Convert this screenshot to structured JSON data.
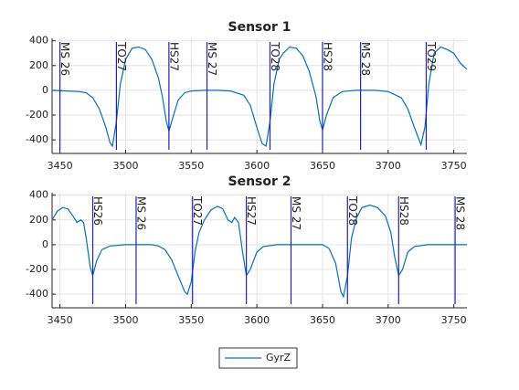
{
  "chart_data": [
    {
      "type": "line",
      "title": "Sensor 1",
      "x": [
        3444,
        3455,
        3465,
        3470,
        3475,
        3480,
        3485,
        3488,
        3490,
        3493,
        3496,
        3500,
        3505,
        3510,
        3515,
        3520,
        3525,
        3528,
        3531,
        3533,
        3536,
        3540,
        3545,
        3550,
        3560,
        3570,
        3580,
        3590,
        3595,
        3600,
        3604,
        3607,
        3610,
        3613,
        3617,
        3620,
        3625,
        3630,
        3635,
        3640,
        3645,
        3648,
        3650,
        3653,
        3658,
        3665,
        3675,
        3690,
        3700,
        3710,
        3715,
        3720,
        3725,
        3728,
        3731,
        3735,
        3740,
        3745,
        3750,
        3755,
        3760
      ],
      "series": [
        {
          "name": "GyrZ",
          "color": "#0072bd",
          "values": [
            0,
            -5,
            -10,
            -20,
            -60,
            -150,
            -300,
            -420,
            -450,
            -250,
            50,
            250,
            340,
            350,
            330,
            250,
            100,
            -50,
            -250,
            -330,
            -220,
            -80,
            -20,
            -5,
            0,
            0,
            -5,
            -40,
            -120,
            -300,
            -430,
            -450,
            -250,
            50,
            250,
            300,
            350,
            340,
            280,
            150,
            -50,
            -250,
            -320,
            -200,
            -60,
            -10,
            0,
            0,
            -10,
            -60,
            -150,
            -300,
            -440,
            -300,
            50,
            300,
            350,
            330,
            300,
            220,
            170
          ]
        }
      ],
      "events": [
        {
          "x": 3450,
          "label": "MS 26"
        },
        {
          "x": 3493,
          "label": "TO27"
        },
        {
          "x": 3533,
          "label": "HS27"
        },
        {
          "x": 3562,
          "label": "MS 27"
        },
        {
          "x": 3610,
          "label": "TO28"
        },
        {
          "x": 3650,
          "label": "HS28"
        },
        {
          "x": 3679,
          "label": "MS 28"
        },
        {
          "x": 3729,
          "label": "TO29"
        }
      ],
      "event_color": "#1f1fc8",
      "xlim": [
        3444,
        3760
      ],
      "ylim": [
        -510,
        420
      ],
      "xticks": [
        3450,
        3500,
        3550,
        3600,
        3650,
        3700,
        3750
      ],
      "yticks": [
        -400,
        -200,
        0,
        200,
        400
      ],
      "grid": true,
      "legend": "bottom"
    },
    {
      "type": "line",
      "title": "Sensor 2",
      "x": [
        3444,
        3448,
        3452,
        3456,
        3460,
        3463,
        3466,
        3468,
        3470,
        3473,
        3475,
        3478,
        3482,
        3488,
        3500,
        3520,
        3525,
        3530,
        3535,
        3540,
        3545,
        3547,
        3550,
        3553,
        3556,
        3560,
        3565,
        3570,
        3574,
        3578,
        3581,
        3583,
        3586,
        3589,
        3592,
        3595,
        3600,
        3605,
        3615,
        3650,
        3655,
        3660,
        3664,
        3666,
        3669,
        3672,
        3676,
        3680,
        3686,
        3692,
        3698,
        3702,
        3705,
        3708,
        3711,
        3715,
        3720,
        3730,
        3760
      ],
      "series": [
        {
          "color": "#0072bd",
          "values": [
            200,
            270,
            300,
            290,
            230,
            180,
            200,
            180,
            50,
            -180,
            -250,
            -130,
            -40,
            -10,
            0,
            0,
            -10,
            -40,
            -120,
            -250,
            -380,
            -400,
            -300,
            -50,
            100,
            200,
            280,
            310,
            290,
            200,
            180,
            220,
            180,
            -50,
            -250,
            -200,
            -60,
            -15,
            0,
            0,
            -30,
            -150,
            -380,
            -420,
            -250,
            50,
            220,
            300,
            320,
            300,
            230,
            100,
            -100,
            -250,
            -200,
            -60,
            -15,
            0,
            0
          ]
        }
      ],
      "events": [
        {
          "x": 3475,
          "label": "HS26"
        },
        {
          "x": 3508,
          "label": "MS 26"
        },
        {
          "x": 3551,
          "label": "TO27"
        },
        {
          "x": 3592,
          "label": "HS27"
        },
        {
          "x": 3626,
          "label": "MS 27"
        },
        {
          "x": 3669,
          "label": "TO28"
        },
        {
          "x": 3708,
          "label": "HS28"
        },
        {
          "x": 3751,
          "label": "MS 28"
        }
      ],
      "event_color": "#1f1fc8",
      "xlim": [
        3444,
        3760
      ],
      "ylim": [
        -510,
        420
      ],
      "xticks": [
        3450,
        3500,
        3550,
        3600,
        3650,
        3700,
        3750
      ],
      "yticks": [
        -400,
        -200,
        0,
        200,
        400
      ],
      "grid": true
    }
  ]
}
